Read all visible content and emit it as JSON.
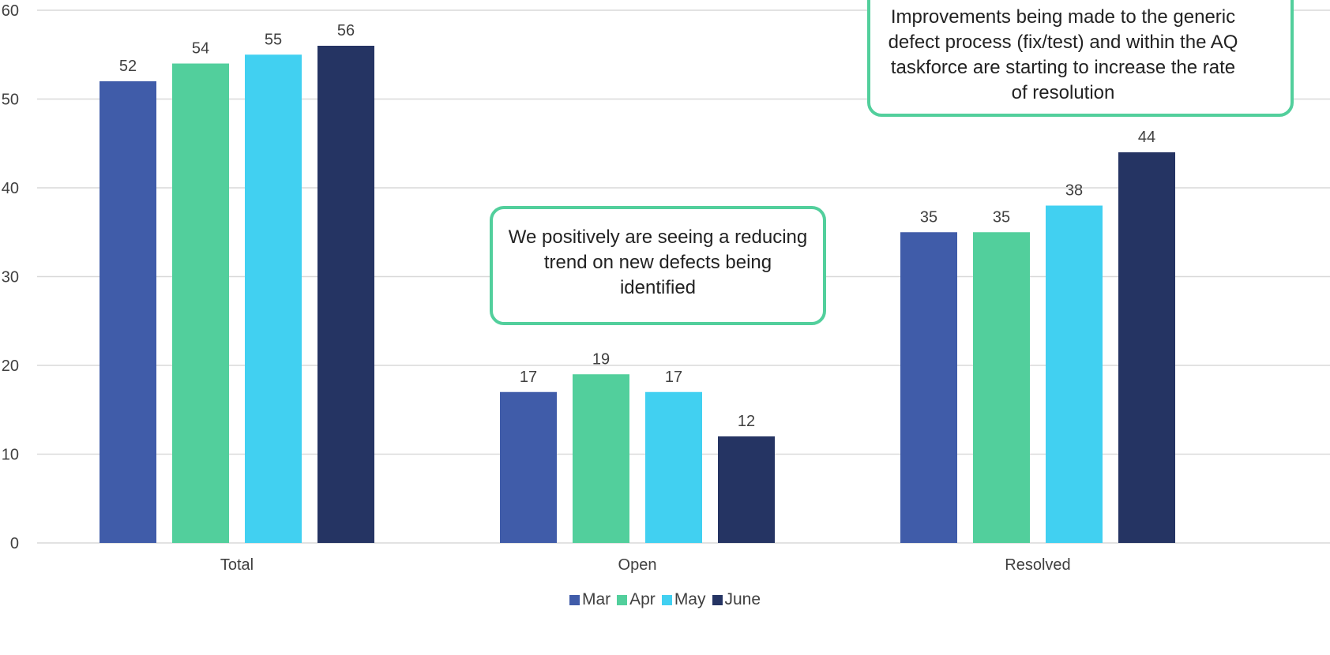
{
  "chart_data": {
    "type": "bar",
    "categories": [
      "Total",
      "Open",
      "Resolved"
    ],
    "series": [
      {
        "name": "Mar",
        "color": "#405ca9",
        "values": [
          52,
          17,
          35
        ]
      },
      {
        "name": "Apr",
        "color": "#52cf9c",
        "values": [
          54,
          19,
          35
        ]
      },
      {
        "name": "May",
        "color": "#41d0f1",
        "values": [
          55,
          17,
          38
        ]
      },
      {
        "name": "June",
        "color": "#253463",
        "values": [
          56,
          12,
          44
        ]
      }
    ],
    "ylim": [
      0,
      60
    ],
    "yticks": [
      0,
      10,
      20,
      30,
      40,
      50,
      60
    ],
    "grid": true,
    "legend_position": "bottom-center",
    "title": "",
    "xlabel": "",
    "ylabel": ""
  },
  "annotations": {
    "open_callout": "We positively are seeing a reducing trend on new defects being identified",
    "resolved_callout": "Improvements being made to the generic defect process (fix/test) and within the AQ taskforce are starting to increase the rate of resolution"
  }
}
